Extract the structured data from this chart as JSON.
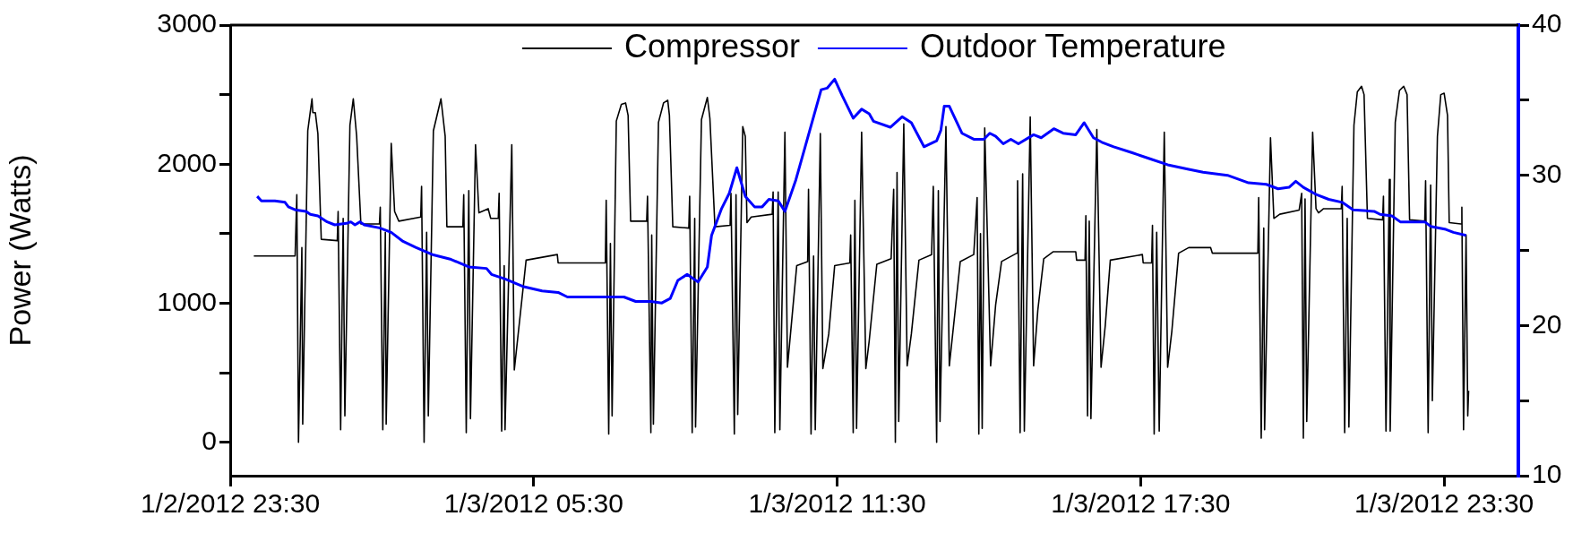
{
  "chart_data": {
    "type": "line",
    "ylabel": "Power (Watts)",
    "legend": "top",
    "xlim": [
      "2012-01-02T23:30",
      "2012-01-04T00:58"
    ],
    "xticks": [
      {
        "value": "2012-01-02T23:30",
        "label": "1/2/2012 23:30"
      },
      {
        "value": "2012-01-03T05:30",
        "label": "1/3/2012 05:30"
      },
      {
        "value": "2012-01-03T11:30",
        "label": "1/3/2012 11:30"
      },
      {
        "value": "2012-01-03T17:30",
        "label": "1/3/2012 17:30"
      },
      {
        "value": "2012-01-03T23:30",
        "label": "1/3/2012 23:30"
      }
    ],
    "ylim": [
      -240,
      3000
    ],
    "yticks": [
      0,
      {
        "value": 500,
        "label": null
      },
      1000,
      {
        "value": 1500,
        "label": null
      },
      2000,
      {
        "value": 2500,
        "label": null
      },
      3000
    ],
    "y2lim": [
      10,
      40
    ],
    "y2ticks": [
      10,
      {
        "value": 15,
        "label": null
      },
      20,
      {
        "value": 25,
        "label": null
      },
      30,
      {
        "value": 35,
        "label": null
      },
      40
    ],
    "series": [
      {
        "name": "Compressor",
        "color": "#000000",
        "x": [
          "2012-01-02T23:58",
          "2012-01-03T00:47",
          "2012-01-03T00:49",
          "2012-01-03T00:51",
          "2012-01-03T00:55",
          "2012-01-03T00:56",
          "2012-01-03T01:02",
          "2012-01-03T01:07",
          "2012-01-03T01:08",
          "2012-01-03T01:11",
          "2012-01-03T01:14",
          "2012-01-03T01:18",
          "2012-01-03T01:37",
          "2012-01-03T01:38",
          "2012-01-03T01:41",
          "2012-01-03T01:44",
          "2012-01-03T01:46",
          "2012-01-03T01:52",
          "2012-01-03T01:56",
          "2012-01-03T02:00",
          "2012-01-03T02:05",
          "2012-01-03T02:27",
          "2012-01-03T02:28",
          "2012-01-03T02:31",
          "2012-01-03T02:34",
          "2012-01-03T02:35",
          "2012-01-03T02:41",
          "2012-01-03T02:45",
          "2012-01-03T02:50",
          "2012-01-03T03:16",
          "2012-01-03T03:17",
          "2012-01-03T03:20",
          "2012-01-03T03:23",
          "2012-01-03T03:25",
          "2012-01-03T03:31",
          "2012-01-03T03:40",
          "2012-01-03T03:45",
          "2012-01-03T03:47",
          "2012-01-03T04:06",
          "2012-01-03T04:07",
          "2012-01-03T04:10",
          "2012-01-03T04:13",
          "2012-01-03T04:15",
          "2012-01-03T04:21",
          "2012-01-03T04:25",
          "2012-01-03T04:36",
          "2012-01-03T04:39",
          "2012-01-03T04:48",
          "2012-01-03T04:49",
          "2012-01-03T04:52",
          "2012-01-03T04:55",
          "2012-01-03T04:56",
          "2012-01-03T05:04",
          "2012-01-03T05:07",
          "2012-01-03T05:21",
          "2012-01-03T05:58",
          "2012-01-03T05:59",
          "2012-01-03T06:55",
          "2012-01-03T06:56",
          "2012-01-03T06:59",
          "2012-01-03T07:01",
          "2012-01-03T07:03",
          "2012-01-03T07:08",
          "2012-01-03T07:14",
          "2012-01-03T07:19",
          "2012-01-03T07:22",
          "2012-01-03T07:25",
          "2012-01-03T07:44",
          "2012-01-03T07:45",
          "2012-01-03T07:49",
          "2012-01-03T07:50",
          "2012-01-03T07:52",
          "2012-01-03T07:58",
          "2012-01-03T08:04",
          "2012-01-03T08:09",
          "2012-01-03T08:11",
          "2012-01-03T08:15",
          "2012-01-03T08:34",
          "2012-01-03T08:35",
          "2012-01-03T08:38",
          "2012-01-03T08:41",
          "2012-01-03T08:42",
          "2012-01-03T08:49",
          "2012-01-03T08:56",
          "2012-01-03T08:59",
          "2012-01-03T09:05",
          "2012-01-03T09:23",
          "2012-01-03T09:24",
          "2012-01-03T09:28",
          "2012-01-03T09:30",
          "2012-01-03T09:32",
          "2012-01-03T09:38",
          "2012-01-03T09:41",
          "2012-01-03T09:43",
          "2012-01-03T09:48",
          "2012-01-03T10:13",
          "2012-01-03T10:14",
          "2012-01-03T10:16",
          "2012-01-03T10:20",
          "2012-01-03T10:22",
          "2012-01-03T10:28",
          "2012-01-03T10:31",
          "2012-01-03T10:42",
          "2012-01-03T10:55",
          "2012-01-03T10:56",
          "2012-01-03T10:59",
          "2012-01-03T11:02",
          "2012-01-03T11:04",
          "2012-01-03T11:10",
          "2012-01-03T11:13",
          "2012-01-03T11:20",
          "2012-01-03T11:27",
          "2012-01-03T11:45",
          "2012-01-03T11:46",
          "2012-01-03T11:49",
          "2012-01-03T11:51",
          "2012-01-03T11:53",
          "2012-01-03T11:59",
          "2012-01-03T12:04",
          "2012-01-03T12:08",
          "2012-01-03T12:17",
          "2012-01-03T12:34",
          "2012-01-03T12:37",
          "2012-01-03T12:39",
          "2012-01-03T12:41",
          "2012-01-03T12:43",
          "2012-01-03T12:49",
          "2012-01-03T12:53",
          "2012-01-03T12:58",
          "2012-01-03T13:07",
          "2012-01-03T13:22",
          "2012-01-03T13:24",
          "2012-01-03T13:28",
          "2012-01-03T13:30",
          "2012-01-03T13:32",
          "2012-01-03T13:39",
          "2012-01-03T13:43",
          "2012-01-03T13:50",
          "2012-01-03T13:56",
          "2012-01-03T14:12",
          "2012-01-03T14:16",
          "2012-01-03T14:18",
          "2012-01-03T14:20",
          "2012-01-03T14:22",
          "2012-01-03T14:25",
          "2012-01-03T14:32",
          "2012-01-03T14:38",
          "2012-01-03T14:45",
          "2012-01-03T15:03",
          "2012-01-03T15:04",
          "2012-01-03T15:07",
          "2012-01-03T15:10",
          "2012-01-03T15:12",
          "2012-01-03T15:19",
          "2012-01-03T15:23",
          "2012-01-03T15:28",
          "2012-01-03T15:35",
          "2012-01-03T15:46",
          "2012-01-03T16:13",
          "2012-01-03T16:14",
          "2012-01-03T16:24",
          "2012-01-03T16:25",
          "2012-01-03T16:27",
          "2012-01-03T16:29",
          "2012-01-03T16:31",
          "2012-01-03T16:38",
          "2012-01-03T16:43",
          "2012-01-03T16:48",
          "2012-01-03T16:54",
          "2012-01-03T17:32",
          "2012-01-03T17:33",
          "2012-01-03T17:43",
          "2012-01-03T17:44",
          "2012-01-03T17:46",
          "2012-01-03T17:49",
          "2012-01-03T17:52",
          "2012-01-03T17:58",
          "2012-01-03T18:02",
          "2012-01-03T18:07",
          "2012-01-03T18:15",
          "2012-01-03T18:27",
          "2012-01-03T18:53",
          "2012-01-03T18:55",
          "2012-01-03T19:49",
          "2012-01-03T19:50",
          "2012-01-03T19:53",
          "2012-01-03T19:56",
          "2012-01-03T19:57",
          "2012-01-03T20:04",
          "2012-01-03T20:08",
          "2012-01-03T20:15",
          "2012-01-03T20:38",
          "2012-01-03T20:41",
          "2012-01-03T20:43",
          "2012-01-03T20:45",
          "2012-01-03T20:47",
          "2012-01-03T20:54",
          "2012-01-03T20:58",
          "2012-01-03T21:01",
          "2012-01-03T21:07",
          "2012-01-03T21:28",
          "2012-01-03T21:29",
          "2012-01-03T21:32",
          "2012-01-03T21:35",
          "2012-01-03T21:37",
          "2012-01-03T21:43",
          "2012-01-03T21:47",
          "2012-01-03T21:52",
          "2012-01-03T21:55",
          "2012-01-03T21:59",
          "2012-01-03T22:17",
          "2012-01-03T22:18",
          "2012-01-03T22:21",
          "2012-01-03T22:25",
          "2012-01-03T22:26",
          "2012-01-03T22:32",
          "2012-01-03T22:37",
          "2012-01-03T22:42",
          "2012-01-03T22:46",
          "2012-01-03T22:49",
          "2012-01-03T23:07",
          "2012-01-03T23:08",
          "2012-01-03T23:11",
          "2012-01-03T23:14",
          "2012-01-03T23:16",
          "2012-01-03T23:22",
          "2012-01-03T23:26",
          "2012-01-03T23:30",
          "2012-01-03T23:34",
          "2012-01-03T23:36",
          "2012-01-03T23:50",
          "2012-01-03T23:51",
          "2012-01-03T23:53",
          "2012-01-03T23:56",
          "2012-01-03T23:58",
          "2012-01-03T23:59"
        ],
        "values": [
          1340,
          1340,
          1780,
          0,
          1400,
          130,
          2240,
          2470,
          2370,
          2370,
          2220,
          1460,
          1450,
          1660,
          90,
          1610,
          190,
          2280,
          2470,
          2200,
          1570,
          1570,
          1690,
          90,
          1510,
          130,
          2150,
          1660,
          1590,
          1620,
          1840,
          0,
          1510,
          190,
          2240,
          2470,
          2200,
          1550,
          1550,
          1780,
          70,
          1810,
          170,
          2140,
          1650,
          1680,
          1610,
          1610,
          1790,
          80,
          1270,
          90,
          2140,
          520,
          1310,
          1350,
          1290,
          1290,
          1740,
          60,
          1430,
          190,
          2310,
          2430,
          2440,
          2350,
          1590,
          1590,
          1770,
          70,
          1490,
          130,
          2300,
          2440,
          2460,
          2350,
          1550,
          1540,
          1770,
          70,
          1610,
          110,
          2320,
          2480,
          2330,
          1550,
          1560,
          1790,
          60,
          1780,
          200,
          2270,
          2200,
          1580,
          1620,
          1640,
          1800,
          70,
          1800,
          90,
          2230,
          540,
          1270,
          1300,
          1820,
          60,
          1340,
          90,
          2220,
          530,
          780,
          1270,
          1290,
          1490,
          70,
          1740,
          100,
          2230,
          530,
          730,
          1280,
          1320,
          1820,
          0,
          1940,
          150,
          2290,
          550,
          780,
          1310,
          1350,
          1840,
          0,
          1810,
          150,
          2270,
          550,
          950,
          1300,
          1350,
          1760,
          60,
          1500,
          100,
          2260,
          550,
          990,
          1300,
          1360,
          1880,
          70,
          1930,
          80,
          2340,
          550,
          950,
          1320,
          1370,
          1370,
          1310,
          1310,
          1630,
          190,
          1590,
          170,
          2250,
          540,
          840,
          1310,
          1350,
          1290,
          1290,
          1560,
          60,
          1510,
          80,
          2230,
          540,
          800,
          1360,
          1400,
          1400,
          1360,
          1360,
          1760,
          30,
          1540,
          90,
          2190,
          1610,
          1640,
          1670,
          1790,
          30,
          1750,
          150,
          2230,
          1680,
          1650,
          1680,
          1680,
          1840,
          70,
          1610,
          110,
          2280,
          2520,
          2560,
          2500,
          1610,
          1600,
          1770,
          80,
          1890,
          80,
          2300,
          2530,
          2560,
          2500,
          1600,
          1590,
          1880,
          70,
          1850,
          300,
          2200,
          2500,
          2510,
          2350,
          1580,
          1570,
          1690,
          90,
          1490,
          190,
          370
        ]
      },
      {
        "name": "Outdoor Temperature",
        "color": "#0000ff",
        "axis": "y2",
        "x": [
          "2012-01-03T00:02",
          "2012-01-03T00:07",
          "2012-01-03T00:23",
          "2012-01-03T00:35",
          "2012-01-03T00:39",
          "2012-01-03T00:47",
          "2012-01-03T01:00",
          "2012-01-03T01:05",
          "2012-01-03T01:14",
          "2012-01-03T01:25",
          "2012-01-03T01:34",
          "2012-01-03T01:48",
          "2012-01-03T01:53",
          "2012-01-03T01:58",
          "2012-01-03T02:04",
          "2012-01-03T02:09",
          "2012-01-03T02:27",
          "2012-01-03T02:41",
          "2012-01-03T02:55",
          "2012-01-03T03:10",
          "2012-01-03T03:31",
          "2012-01-03T03:52",
          "2012-01-03T04:13",
          "2012-01-03T04:34",
          "2012-01-03T04:40",
          "2012-01-03T04:56",
          "2012-01-03T05:17",
          "2012-01-03T05:40",
          "2012-01-03T05:59",
          "2012-01-03T06:10",
          "2012-01-03T07:17",
          "2012-01-03T07:31",
          "2012-01-03T07:49",
          "2012-01-03T08:02",
          "2012-01-03T08:12",
          "2012-01-03T08:21",
          "2012-01-03T08:32",
          "2012-01-03T08:45",
          "2012-01-03T08:56",
          "2012-01-03T09:01",
          "2012-01-03T09:13",
          "2012-01-03T09:22",
          "2012-01-03T09:31",
          "2012-01-03T09:41",
          "2012-01-03T09:52",
          "2012-01-03T10:01",
          "2012-01-03T10:09",
          "2012-01-03T10:20",
          "2012-01-03T10:28",
          "2012-01-03T10:41",
          "2012-01-03T10:52",
          "2012-01-03T11:11",
          "2012-01-03T11:18",
          "2012-01-03T11:27",
          "2012-01-03T11:36",
          "2012-01-03T11:49",
          "2012-01-03T11:59",
          "2012-01-03T12:08",
          "2012-01-03T12:13",
          "2012-01-03T12:33",
          "2012-01-03T12:47",
          "2012-01-03T12:58",
          "2012-01-03T13:13",
          "2012-01-03T13:28",
          "2012-01-03T13:33",
          "2012-01-03T13:37",
          "2012-01-03T13:43",
          "2012-01-03T13:58",
          "2012-01-03T14:12",
          "2012-01-03T14:24",
          "2012-01-03T14:31",
          "2012-01-03T14:38",
          "2012-01-03T14:47",
          "2012-01-03T14:56",
          "2012-01-03T15:05",
          "2012-01-03T15:23",
          "2012-01-03T15:32",
          "2012-01-03T15:47",
          "2012-01-03T15:58",
          "2012-01-03T16:13",
          "2012-01-03T16:23",
          "2012-01-03T16:34",
          "2012-01-03T16:44",
          "2012-01-03T16:58",
          "2012-01-03T17:20",
          "2012-01-03T17:41",
          "2012-01-03T18:02",
          "2012-01-03T18:27",
          "2012-01-03T18:44",
          "2012-01-03T19:13",
          "2012-01-03T19:38",
          "2012-01-03T19:59",
          "2012-01-03T20:13",
          "2012-01-03T20:26",
          "2012-01-03T20:34",
          "2012-01-03T20:43",
          "2012-01-03T20:59",
          "2012-01-03T21:13",
          "2012-01-03T21:29",
          "2012-01-03T21:42",
          "2012-01-03T22:07",
          "2012-01-03T22:14",
          "2012-01-03T22:28",
          "2012-01-03T22:38",
          "2012-01-03T23:07",
          "2012-01-03T23:14",
          "2012-01-03T23:32",
          "2012-01-03T23:41",
          "2012-01-03T23:56"
        ],
        "values": [
          28.6,
          28.3,
          28.3,
          28.2,
          27.9,
          27.7,
          27.6,
          27.4,
          27.3,
          26.9,
          26.7,
          26.8,
          26.9,
          26.7,
          26.9,
          26.7,
          26.5,
          26.2,
          25.6,
          25.2,
          24.7,
          24.4,
          23.9,
          23.8,
          23.4,
          23.1,
          22.6,
          22.3,
          22.2,
          21.9,
          21.9,
          21.6,
          21.6,
          21.5,
          21.8,
          23.0,
          23.4,
          22.9,
          23.9,
          26.0,
          27.8,
          28.8,
          30.5,
          28.6,
          27.9,
          27.9,
          28.4,
          28.3,
          27.6,
          29.7,
          31.9,
          35.7,
          35.8,
          36.4,
          35.3,
          33.8,
          34.4,
          34.1,
          33.6,
          33.2,
          33.9,
          33.5,
          31.9,
          32.3,
          33.0,
          34.6,
          34.6,
          32.8,
          32.4,
          32.4,
          32.8,
          32.6,
          32.1,
          32.4,
          32.1,
          32.7,
          32.5,
          33.1,
          32.8,
          32.7,
          33.5,
          32.5,
          32.2,
          31.9,
          31.5,
          31.1,
          30.7,
          30.4,
          30.2,
          30.0,
          29.5,
          29.4,
          29.1,
          29.2,
          29.6,
          29.2,
          28.7,
          28.4,
          28.2,
          27.7,
          27.6,
          27.4,
          27.3,
          26.9,
          26.9,
          26.6,
          26.4,
          26.2,
          26.0
        ]
      }
    ]
  }
}
